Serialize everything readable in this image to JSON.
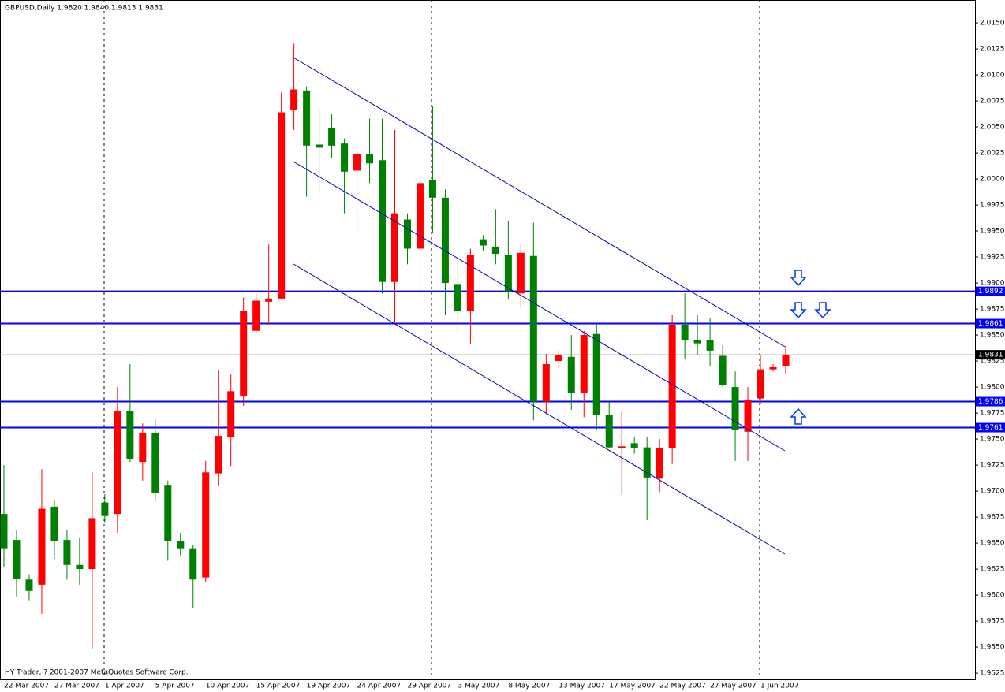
{
  "chart_data": {
    "type": "candlestick",
    "title": "GBPUSD,Daily  1.9820 1.9840 1.9813 1.9831",
    "footer": "HY Trader, ? 2001-2007 MetaQuotes Software Corp.",
    "categories": [
      "22 Mar 2007",
      null,
      null,
      null,
      "27 Mar 2007",
      null,
      null,
      null,
      "1 Apr 2007",
      null,
      null,
      null,
      "5 Apr 2007",
      null,
      null,
      null,
      "10 Apr 2007",
      null,
      null,
      null,
      "15 Apr 2007",
      null,
      null,
      null,
      "19 Apr 2007",
      null,
      null,
      null,
      "24 Apr 2007",
      null,
      null,
      null,
      "29 Apr 2007",
      null,
      null,
      null,
      "3 May 2007",
      null,
      null,
      null,
      "8 May 2007",
      null,
      null,
      null,
      "13 May 2007",
      null,
      null,
      null,
      "17 May 2007",
      null,
      null,
      null,
      "22 May 2007",
      null,
      null,
      null,
      "27 May 2007",
      null,
      null,
      null,
      "1 Jun 2007",
      null,
      null
    ],
    "open": [
      1.9678,
      1.9653,
      1.9615,
      1.961,
      1.9685,
      1.9653,
      1.9629,
      1.9625,
      1.9689,
      1.9678,
      1.9777,
      1.9728,
      1.9756,
      1.9706,
      1.9652,
      1.9645,
      1.9617,
      1.9717,
      1.9752,
      1.9791,
      1.9854,
      1.9882,
      1.9885,
      2.0066,
      2.0085,
      2.0033,
      2.0049,
      2.0034,
      2.0008,
      2.0024,
      2.0018,
      1.9901,
      1.9961,
      1.9933,
      1.9999,
      1.9982,
      1.9899,
      1.9873,
      1.9942,
      1.9935,
      1.9927,
      1.989,
      1.9926,
      1.9786,
      1.9825,
      1.9829,
      1.9794,
      1.9851,
      1.9773,
      1.9741,
      1.9746,
      1.9742,
      1.9712,
      1.9741,
      1.986,
      1.9845,
      1.9845,
      1.983,
      1.98,
      1.9757,
      1.9789,
      1.9817,
      1.982
    ],
    "high": [
      1.9725,
      1.9662,
      1.962,
      1.9721,
      1.9692,
      1.9663,
      1.9655,
      1.9718,
      1.9697,
      1.98,
      1.9822,
      1.9765,
      1.977,
      1.971,
      1.966,
      1.9648,
      1.9729,
      1.9816,
      1.9812,
      1.9886,
      1.989,
      1.9937,
      2.0083,
      2.013,
      2.0089,
      2.0066,
      2.0062,
      2.0039,
      2.0036,
      2.0058,
      2.0058,
      2.0047,
      1.9967,
      2.0002,
      2.007,
      1.999,
      1.9922,
      1.9933,
      1.9946,
      1.9971,
      1.996,
      1.9937,
      1.9958,
      1.9832,
      1.9835,
      1.985,
      1.9854,
      1.9861,
      1.9786,
      1.9777,
      1.9752,
      1.9752,
      1.975,
      1.9869,
      1.989,
      1.9869,
      1.9866,
      1.984,
      1.9815,
      1.98,
      1.9831,
      1.9822,
      1.984
    ],
    "low": [
      1.9627,
      1.9598,
      1.9595,
      1.9582,
      1.9635,
      1.9615,
      1.961,
      1.9548,
      1.967,
      1.966,
      1.9728,
      1.971,
      1.969,
      1.9633,
      1.9637,
      1.9588,
      1.9612,
      1.9705,
      1.9724,
      1.9782,
      1.9852,
      1.986,
      1.9884,
      2.0047,
      1.9983,
      1.9988,
      2.002,
      1.9967,
      1.995,
      1.9996,
      1.989,
      1.9861,
      1.9918,
      1.9888,
      1.9948,
      1.9869,
      1.9854,
      1.9841,
      1.9931,
      1.9918,
      1.9884,
      1.9876,
      1.9768,
      1.9774,
      1.9818,
      1.9778,
      1.9771,
      1.9759,
      1.9741,
      1.9697,
      1.9736,
      1.9672,
      1.9699,
      1.9726,
      1.9827,
      1.9831,
      1.982,
      1.98,
      1.9729,
      1.9729,
      1.9784,
      1.9815,
      1.9813
    ],
    "close": [
      1.9645,
      1.9616,
      1.9604,
      1.9683,
      1.9652,
      1.9629,
      1.9625,
      1.9674,
      1.9676,
      1.9777,
      1.9731,
      1.9756,
      1.9698,
      1.9652,
      1.9645,
      1.9615,
      1.9718,
      1.9753,
      1.9796,
      1.9873,
      1.9883,
      1.9885,
      2.0064,
      2.0086,
      2.0032,
      2.003,
      2.0032,
      2.0007,
      2.0024,
      2.0015,
      1.9901,
      1.9967,
      1.9933,
      1.9996,
      1.9982,
      1.99,
      1.9873,
      1.9927,
      1.9936,
      1.9928,
      1.9892,
      1.9929,
      1.9786,
      1.9822,
      1.9831,
      1.9794,
      1.985,
      1.9773,
      1.9742,
      1.9743,
      1.9741,
      1.9713,
      1.9741,
      1.986,
      1.9845,
      1.9842,
      1.9835,
      1.9802,
      1.9759,
      1.9788,
      1.9817,
      1.9819,
      1.9831
    ],
    "up_color": "#ff0000",
    "down_color": "#008000",
    "levels": [
      1.9892,
      1.9861,
      1.9786,
      1.9761
    ],
    "level_color": "#0000ff",
    "last_price": 1.9831,
    "ylim": [
      1.9519,
      2.0172
    ],
    "yticks": [
      1.9525,
      {
        "value": 1.955,
        "label": "1.9550"
      },
      1.9575,
      {
        "value": 1.96,
        "label": "1.9600"
      },
      1.9625,
      {
        "value": 1.965,
        "label": "1.9650"
      },
      1.9675,
      {
        "value": 1.97,
        "label": "1.9700"
      },
      1.9725,
      {
        "value": 1.975,
        "label": "1.9750"
      },
      1.9775,
      {
        "value": 1.98,
        "label": "1.9800"
      },
      1.9825,
      {
        "value": 1.985,
        "label": "1.9850"
      },
      1.9875,
      {
        "value": 1.99,
        "label": "1.9900"
      },
      1.9925,
      {
        "value": 1.995,
        "label": "1.9950"
      },
      1.9975,
      {
        "value": 2,
        "label": "2.0000"
      },
      2.0025,
      {
        "value": 2.005,
        "label": "2.0050"
      },
      2.0075,
      {
        "value": 2.01,
        "label": "2.0100"
      },
      2.0125,
      {
        "value": 2.015,
        "label": "2.0150"
      }
    ]
  }
}
